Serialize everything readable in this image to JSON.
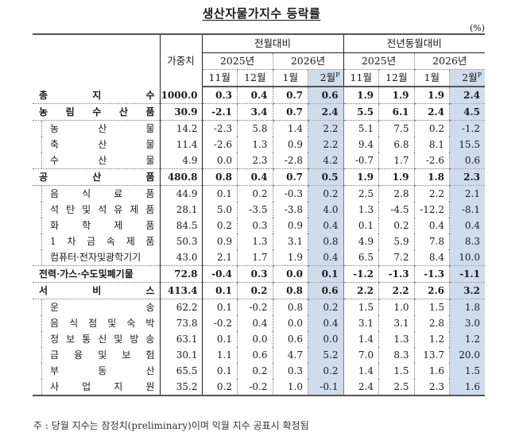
{
  "title": "생산자물가지수 등락률",
  "unit": "(%)",
  "header": {
    "weight_label": "가중치",
    "group_mom": "전월대비",
    "group_yoy": "전년동월대비",
    "year_2025": "2025년",
    "year_2026": "2026년",
    "months": [
      "11월",
      "12월",
      "1월",
      "2월"
    ],
    "preliminary_mark": "P"
  },
  "rows": [
    {
      "label": "총 지 수",
      "chars": [
        "총",
        "지",
        "수"
      ],
      "level": "major",
      "weight": "1000.0",
      "mom": [
        "0.3",
        "0.4",
        "0.7",
        "0.6"
      ],
      "yoy": [
        "1.9",
        "1.9",
        "1.9",
        "2.4"
      ]
    },
    {
      "label": "농림수산품",
      "chars": [
        "농",
        "림",
        "수",
        "산",
        "품"
      ],
      "level": "major",
      "weight": "30.9",
      "mom": [
        "-2.1",
        "3.4",
        "0.7",
        "2.4"
      ],
      "yoy": [
        "5.5",
        "6.1",
        "2.4",
        "4.5"
      ]
    },
    {
      "label": "농산물",
      "chars": [
        "농",
        "산",
        "물"
      ],
      "level": "sub",
      "weight": "14.2",
      "mom": [
        "-2.3",
        "5.8",
        "1.4",
        "2.2"
      ],
      "yoy": [
        "5.1",
        "7.5",
        "0.2",
        "-1.2"
      ]
    },
    {
      "label": "축산물",
      "chars": [
        "축",
        "산",
        "물"
      ],
      "level": "sub",
      "weight": "11.4",
      "mom": [
        "-2.6",
        "1.3",
        "0.9",
        "2.2"
      ],
      "yoy": [
        "9.4",
        "6.8",
        "8.1",
        "15.5"
      ]
    },
    {
      "label": "수산물",
      "chars": [
        "수",
        "산",
        "물"
      ],
      "level": "sub",
      "weight": "4.9",
      "mom": [
        "0.0",
        "2.3",
        "-2.8",
        "4.2"
      ],
      "yoy": [
        "-0.7",
        "1.7",
        "-2.6",
        "0.6"
      ],
      "group_end": true
    },
    {
      "label": "공산품",
      "chars": [
        "공",
        "산",
        "품"
      ],
      "level": "major",
      "weight": "480.8",
      "mom": [
        "0.8",
        "0.4",
        "0.7",
        "0.5"
      ],
      "yoy": [
        "1.9",
        "1.9",
        "1.8",
        "2.3"
      ]
    },
    {
      "label": "음식료품",
      "chars": [
        "음",
        "식",
        "료",
        "품"
      ],
      "level": "sub",
      "weight": "44.9",
      "mom": [
        "0.1",
        "0.2",
        "-0.3",
        "0.2"
      ],
      "yoy": [
        "2.5",
        "2.8",
        "2.2",
        "2.1"
      ]
    },
    {
      "label": "석탄및석유제품",
      "chars": [
        "석",
        "탄",
        "및",
        "석",
        "유",
        "제",
        "품"
      ],
      "level": "sub",
      "weight": "28.1",
      "mom": [
        "5.0",
        "-3.5",
        "-3.8",
        "4.0"
      ],
      "yoy": [
        "1.3",
        "-4.5",
        "-12.2",
        "-8.1"
      ]
    },
    {
      "label": "화학제품",
      "chars": [
        "화",
        "학",
        "제",
        "품"
      ],
      "level": "sub",
      "weight": "84.5",
      "mom": [
        "0.2",
        "0.3",
        "0.9",
        "0.4"
      ],
      "yoy": [
        "0.1",
        "0.2",
        "0.4",
        "0.4"
      ]
    },
    {
      "label": "1차금속제품",
      "chars": [
        "1",
        "차",
        "금",
        "속",
        "제",
        "품"
      ],
      "level": "sub",
      "weight": "50.3",
      "mom": [
        "0.9",
        "1.3",
        "3.1",
        "0.8"
      ],
      "yoy": [
        "4.9",
        "5.9",
        "7.8",
        "8.3"
      ]
    },
    {
      "label": "컴퓨터·전자및광학기기",
      "chars": [
        "컴퓨터·전자및광학기기"
      ],
      "level": "sub",
      "weight": "43.0",
      "mom": [
        "2.1",
        "1.7",
        "1.9",
        "0.4"
      ],
      "yoy": [
        "6.5",
        "7.2",
        "8.4",
        "10.0"
      ],
      "group_end": true
    },
    {
      "label": "전력·가스·수도및폐기물",
      "chars": [
        "전력·가스·수도및폐기물"
      ],
      "level": "major",
      "weight": "72.8",
      "mom": [
        "-0.4",
        "0.3",
        "0.0",
        "0.1"
      ],
      "yoy": [
        "-1.2",
        "-1.3",
        "-1.3",
        "-1.1"
      ],
      "group_end": true
    },
    {
      "label": "서비스",
      "chars": [
        "서",
        "비",
        "스"
      ],
      "level": "major",
      "weight": "413.4",
      "mom": [
        "0.1",
        "0.2",
        "0.8",
        "0.6"
      ],
      "yoy": [
        "2.2",
        "2.2",
        "2.6",
        "3.2"
      ]
    },
    {
      "label": "운송",
      "chars": [
        "운",
        "송"
      ],
      "level": "sub",
      "weight": "62.2",
      "mom": [
        "0.1",
        "-0.2",
        "0.8",
        "0.2"
      ],
      "yoy": [
        "1.5",
        "1.0",
        "1.5",
        "1.8"
      ]
    },
    {
      "label": "음식점및숙박",
      "chars": [
        "음",
        "식",
        "점",
        "및",
        "숙",
        "박"
      ],
      "level": "sub",
      "weight": "73.8",
      "mom": [
        "-0.2",
        "0.4",
        "0.0",
        "0.4"
      ],
      "yoy": [
        "3.1",
        "3.1",
        "2.8",
        "3.0"
      ]
    },
    {
      "label": "정보통신및방송",
      "chars": [
        "정",
        "보",
        "통",
        "신",
        "및",
        "방",
        "송"
      ],
      "level": "sub",
      "weight": "63.1",
      "mom": [
        "0.1",
        "0.0",
        "0.6",
        "0.0"
      ],
      "yoy": [
        "1.4",
        "1.3",
        "1.2",
        "1.2"
      ]
    },
    {
      "label": "금융및보험",
      "chars": [
        "금",
        "융",
        "및",
        "보",
        "험"
      ],
      "level": "sub",
      "weight": "30.1",
      "mom": [
        "1.1",
        "0.6",
        "4.7",
        "5.2"
      ],
      "yoy": [
        "7.0",
        "8.3",
        "13.7",
        "20.0"
      ]
    },
    {
      "label": "부동산",
      "chars": [
        "부",
        "동",
        "산"
      ],
      "level": "sub",
      "weight": "65.5",
      "mom": [
        "0.1",
        "0.2",
        "0.3",
        "0.2"
      ],
      "yoy": [
        "1.4",
        "1.5",
        "1.6",
        "1.5"
      ]
    },
    {
      "label": "사업지원",
      "chars": [
        "사",
        "업",
        "지",
        "원"
      ],
      "level": "sub",
      "weight": "35.2",
      "mom": [
        "0.2",
        "-0.2",
        "1.0",
        "-0.1"
      ],
      "yoy": [
        "2.4",
        "2.5",
        "2.3",
        "1.6"
      ],
      "last": true
    }
  ],
  "footnote": "주 : 당월 지수는 잠정치(preliminary)이며 익월 지수 공표시 확정됨",
  "colors": {
    "shade": "#cfdcec",
    "border": "#555555"
  }
}
